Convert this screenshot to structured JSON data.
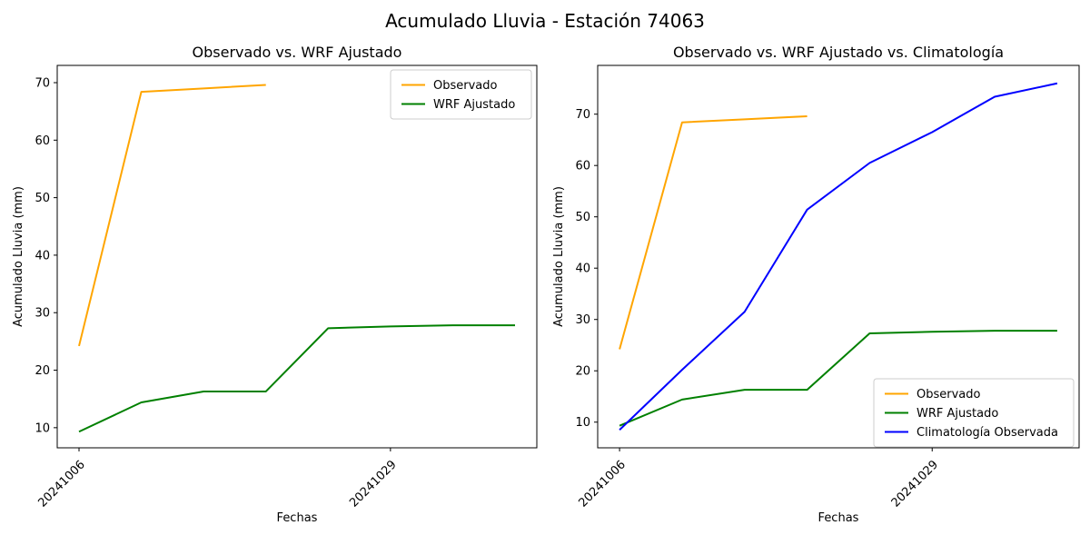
{
  "figure": {
    "suptitle": "Acumulado Lluvia - Estación 74063",
    "background": "#ffffff",
    "text_color": "#000000",
    "axis_color": "#000000"
  },
  "chart_data": [
    {
      "type": "line",
      "title": "Observado vs. WRF Ajustado",
      "xlabel": "Fechas",
      "ylabel": "Acumulado Lluvia (mm)",
      "x_slots": 8,
      "xticks": [
        {
          "slot": 0,
          "label": "20241006"
        },
        {
          "slot": 5,
          "label": "20241029"
        }
      ],
      "yticks": [
        10,
        20,
        30,
        40,
        50,
        60,
        70
      ],
      "ylim": [
        6.5,
        73.0
      ],
      "grid": false,
      "legend_position": "upper-right",
      "series": [
        {
          "name": "Observado",
          "color": "#FFA500",
          "values": [
            24.2,
            68.4,
            69.0,
            69.6
          ]
        },
        {
          "name": "WRF Ajustado",
          "color": "#008000",
          "values": [
            9.3,
            14.4,
            16.3,
            16.3,
            27.3,
            27.6,
            27.8,
            27.8
          ]
        }
      ]
    },
    {
      "type": "line",
      "title": "Observado vs. WRF Ajustado vs. Climatología",
      "xlabel": "Fechas",
      "ylabel": "Acumulado Lluvia (mm)",
      "x_slots": 8,
      "xticks": [
        {
          "slot": 0,
          "label": "20241006"
        },
        {
          "slot": 5,
          "label": "20241029"
        }
      ],
      "yticks": [
        10,
        20,
        30,
        40,
        50,
        60,
        70
      ],
      "ylim": [
        5.0,
        79.5
      ],
      "grid": false,
      "legend_position": "lower-right",
      "series": [
        {
          "name": "Observado",
          "color": "#FFA500",
          "values": [
            24.2,
            68.4,
            69.0,
            69.6
          ]
        },
        {
          "name": "WRF Ajustado",
          "color": "#008000",
          "values": [
            9.3,
            14.4,
            16.3,
            16.3,
            27.3,
            27.6,
            27.8,
            27.8
          ]
        },
        {
          "name": "Climatología Observada",
          "color": "#0000FF",
          "values": [
            8.5,
            20.2,
            31.5,
            51.4,
            60.5,
            66.5,
            73.4,
            76.0
          ]
        }
      ]
    }
  ]
}
